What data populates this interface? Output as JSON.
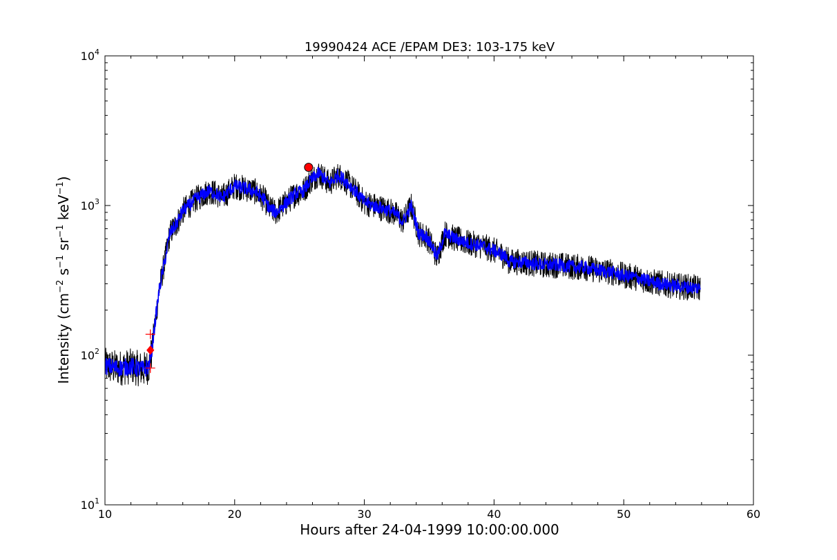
{
  "chart_data": {
    "type": "line",
    "title": "19990424 ACE /EPAM DE3: 103-175 keV",
    "xlabel": "Hours after 24-04-1999 10:00:00.000",
    "ylabel": "Intensity (cm⁻² s⁻¹ sr⁻¹ keV⁻¹)",
    "xlim": [
      10,
      60
    ],
    "ylim": [
      10,
      10000
    ],
    "yscale": "log",
    "grid": false,
    "x_ticks": [
      10,
      20,
      30,
      40,
      50,
      60
    ],
    "y_ticks": [
      {
        "value": 10,
        "base": "10",
        "exp": "1"
      },
      {
        "value": 100,
        "base": "10",
        "exp": "2"
      },
      {
        "value": 1000,
        "base": "10",
        "exp": "3"
      },
      {
        "value": 10000,
        "base": "10",
        "exp": "4"
      }
    ],
    "colors": {
      "raw": "#000000",
      "smoothed": "#0000ff",
      "markers": "#ff0000"
    },
    "series": [
      {
        "style": "raw-black",
        "x": [
          10.0,
          11.0,
          12.0,
          13.0,
          13.4,
          13.6,
          13.8,
          14.2,
          14.6,
          15.0,
          15.5,
          16.0,
          17.0,
          18.0,
          18.6,
          19.0,
          20.0,
          20.8,
          21.5,
          22.3,
          22.7,
          23.2,
          24.0,
          24.7,
          25.3,
          25.8,
          26.5,
          27.3,
          28.0,
          28.6,
          29.3,
          30.0,
          31.0,
          32.0,
          32.6,
          33.0,
          33.6,
          34.2,
          34.8,
          35.3,
          35.6,
          36.2,
          37.0,
          38.0,
          39.0,
          40.0,
          40.8,
          41.2,
          42.0,
          43.0,
          44.0,
          45.0,
          46.0,
          47.0,
          48.0,
          49.0,
          50.0,
          51.0,
          52.0,
          53.0,
          54.0,
          55.0,
          55.9
        ],
        "y": [
          85,
          82,
          84,
          80,
          85,
          105,
          150,
          280,
          420,
          650,
          750,
          920,
          1100,
          1250,
          1200,
          1120,
          1350,
          1300,
          1250,
          1100,
          950,
          900,
          1050,
          1200,
          1250,
          1450,
          1650,
          1400,
          1600,
          1450,
          1250,
          1050,
          980,
          920,
          850,
          780,
          1000,
          650,
          620,
          520,
          450,
          650,
          600,
          560,
          540,
          500,
          460,
          420,
          420,
          410,
          400,
          400,
          390,
          385,
          370,
          360,
          340,
          330,
          310,
          300,
          290,
          285,
          280
        ]
      },
      {
        "style": "smoothed-blue",
        "x": [
          10.0,
          11.0,
          12.0,
          13.0,
          13.4,
          13.6,
          13.8,
          14.2,
          14.6,
          15.0,
          15.5,
          16.0,
          17.0,
          18.0,
          18.6,
          19.0,
          20.0,
          20.8,
          21.5,
          22.3,
          22.7,
          23.2,
          24.0,
          24.7,
          25.3,
          25.8,
          26.5,
          27.3,
          28.0,
          28.6,
          29.3,
          30.0,
          31.0,
          32.0,
          32.6,
          33.0,
          33.6,
          34.2,
          34.8,
          35.3,
          35.6,
          36.2,
          37.0,
          38.0,
          39.0,
          40.0,
          40.8,
          41.2,
          42.0,
          43.0,
          44.0,
          45.0,
          46.0,
          47.0,
          48.0,
          49.0,
          50.0,
          51.0,
          52.0,
          53.0,
          54.0,
          55.0,
          55.9
        ],
        "y": [
          85,
          82,
          84,
          80,
          85,
          105,
          150,
          280,
          420,
          650,
          750,
          920,
          1100,
          1250,
          1200,
          1120,
          1350,
          1300,
          1250,
          1100,
          950,
          900,
          1050,
          1200,
          1250,
          1450,
          1650,
          1400,
          1600,
          1450,
          1250,
          1050,
          980,
          920,
          850,
          780,
          1000,
          650,
          620,
          520,
          450,
          650,
          600,
          560,
          540,
          500,
          460,
          420,
          420,
          410,
          400,
          400,
          390,
          385,
          370,
          360,
          340,
          330,
          310,
          300,
          290,
          285,
          280
        ]
      }
    ],
    "markers": [
      {
        "kind": "circle",
        "x": 25.7,
        "y": 1800
      },
      {
        "kind": "diamond",
        "x": 13.5,
        "y": 108
      },
      {
        "kind": "plus",
        "x": 13.5,
        "y": 138
      },
      {
        "kind": "plus",
        "x": 13.5,
        "y": 82
      }
    ]
  }
}
